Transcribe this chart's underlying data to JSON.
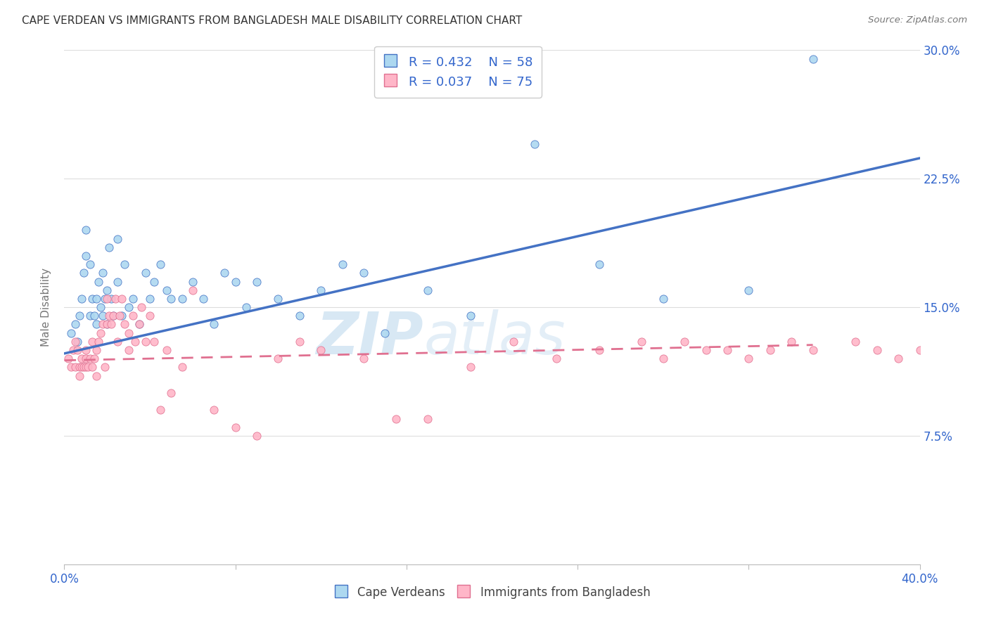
{
  "title": "CAPE VERDEAN VS IMMIGRANTS FROM BANGLADESH MALE DISABILITY CORRELATION CHART",
  "source": "Source: ZipAtlas.com",
  "ylabel": "Male Disability",
  "x_min": 0.0,
  "x_max": 0.4,
  "y_min": 0.0,
  "y_max": 0.3,
  "x_ticks": [
    0.0,
    0.08,
    0.16,
    0.24,
    0.32,
    0.4
  ],
  "x_tick_labels": [
    "0.0%",
    "",
    "",
    "",
    "",
    "40.0%"
  ],
  "y_ticks": [
    0.0,
    0.075,
    0.15,
    0.225,
    0.3
  ],
  "y_tick_labels": [
    "",
    "7.5%",
    "15.0%",
    "22.5%",
    "30.0%"
  ],
  "r_cape": 0.432,
  "n_cape": 58,
  "r_bang": 0.037,
  "n_bang": 75,
  "color_cape": "#ADD8F0",
  "color_bang": "#FFB6C8",
  "line_color_cape": "#4472C4",
  "line_color_bang": "#E07090",
  "watermark_zip": "ZIP",
  "watermark_atlas": "atlas",
  "legend_labels": [
    "Cape Verdeans",
    "Immigrants from Bangladesh"
  ],
  "cape_scatter_x": [
    0.003,
    0.005,
    0.006,
    0.007,
    0.008,
    0.009,
    0.01,
    0.01,
    0.012,
    0.012,
    0.013,
    0.014,
    0.015,
    0.015,
    0.016,
    0.017,
    0.018,
    0.018,
    0.019,
    0.02,
    0.02,
    0.021,
    0.022,
    0.023,
    0.025,
    0.025,
    0.027,
    0.028,
    0.03,
    0.032,
    0.035,
    0.038,
    0.04,
    0.042,
    0.045,
    0.048,
    0.05,
    0.055,
    0.06,
    0.065,
    0.07,
    0.075,
    0.08,
    0.085,
    0.09,
    0.1,
    0.11,
    0.12,
    0.13,
    0.14,
    0.15,
    0.17,
    0.19,
    0.22,
    0.25,
    0.28,
    0.32,
    0.35
  ],
  "cape_scatter_y": [
    0.135,
    0.14,
    0.13,
    0.145,
    0.155,
    0.17,
    0.18,
    0.195,
    0.145,
    0.175,
    0.155,
    0.145,
    0.14,
    0.155,
    0.165,
    0.15,
    0.145,
    0.17,
    0.155,
    0.14,
    0.16,
    0.185,
    0.155,
    0.145,
    0.19,
    0.165,
    0.145,
    0.175,
    0.15,
    0.155,
    0.14,
    0.17,
    0.155,
    0.165,
    0.175,
    0.16,
    0.155,
    0.155,
    0.165,
    0.155,
    0.14,
    0.17,
    0.165,
    0.15,
    0.165,
    0.155,
    0.145,
    0.16,
    0.175,
    0.17,
    0.135,
    0.16,
    0.145,
    0.245,
    0.175,
    0.155,
    0.16,
    0.295
  ],
  "bang_scatter_x": [
    0.002,
    0.003,
    0.004,
    0.005,
    0.005,
    0.006,
    0.007,
    0.007,
    0.008,
    0.008,
    0.009,
    0.01,
    0.01,
    0.01,
    0.011,
    0.012,
    0.013,
    0.013,
    0.014,
    0.015,
    0.015,
    0.016,
    0.017,
    0.018,
    0.019,
    0.02,
    0.02,
    0.021,
    0.022,
    0.023,
    0.024,
    0.025,
    0.026,
    0.027,
    0.028,
    0.03,
    0.03,
    0.032,
    0.033,
    0.035,
    0.036,
    0.038,
    0.04,
    0.042,
    0.045,
    0.048,
    0.05,
    0.055,
    0.06,
    0.07,
    0.08,
    0.09,
    0.1,
    0.11,
    0.12,
    0.14,
    0.155,
    0.17,
    0.19,
    0.21,
    0.23,
    0.25,
    0.27,
    0.28,
    0.29,
    0.3,
    0.31,
    0.32,
    0.33,
    0.34,
    0.35,
    0.37,
    0.38,
    0.39,
    0.4
  ],
  "bang_scatter_y": [
    0.12,
    0.115,
    0.125,
    0.13,
    0.115,
    0.125,
    0.115,
    0.11,
    0.115,
    0.12,
    0.115,
    0.115,
    0.125,
    0.12,
    0.115,
    0.12,
    0.13,
    0.115,
    0.12,
    0.125,
    0.11,
    0.13,
    0.135,
    0.14,
    0.115,
    0.155,
    0.14,
    0.145,
    0.14,
    0.145,
    0.155,
    0.13,
    0.145,
    0.155,
    0.14,
    0.125,
    0.135,
    0.145,
    0.13,
    0.14,
    0.15,
    0.13,
    0.145,
    0.13,
    0.09,
    0.125,
    0.1,
    0.115,
    0.16,
    0.09,
    0.08,
    0.075,
    0.12,
    0.13,
    0.125,
    0.12,
    0.085,
    0.085,
    0.115,
    0.13,
    0.12,
    0.125,
    0.13,
    0.12,
    0.13,
    0.125,
    0.125,
    0.12,
    0.125,
    0.13,
    0.125,
    0.13,
    0.125,
    0.12,
    0.125
  ],
  "cape_line_x": [
    0.0,
    0.4
  ],
  "cape_line_y": [
    0.123,
    0.237
  ],
  "bang_line_x": [
    0.0,
    0.35
  ],
  "bang_line_y": [
    0.119,
    0.128
  ]
}
